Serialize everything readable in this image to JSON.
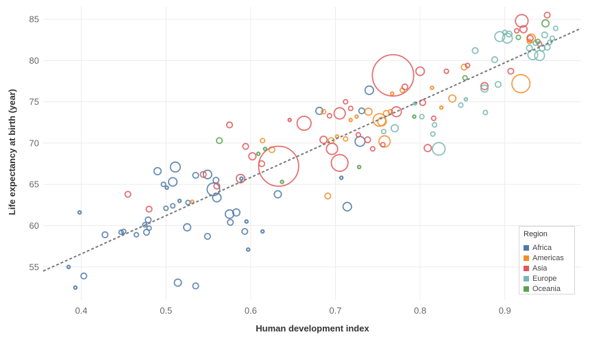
{
  "chart_data": {
    "type": "scatter",
    "title": "",
    "xlabel": "Human development index",
    "ylabel": "Life expectancy at birth (year)",
    "xlim": [
      0.355,
      0.99
    ],
    "ylim": [
      51,
      86.5
    ],
    "x_ticks": [
      "0.4",
      "0.5",
      "0.6",
      "0.7",
      "0.8",
      "0.9"
    ],
    "x_tick_values": [
      0.4,
      0.5,
      0.6,
      0.7,
      0.8,
      0.9
    ],
    "y_ticks": [
      "55",
      "60",
      "65",
      "70",
      "75",
      "80",
      "85"
    ],
    "y_tick_values": [
      55,
      60,
      65,
      70,
      75,
      80,
      85
    ],
    "grid": true,
    "legend_position": "bottom-right",
    "legend": {
      "title": "Region",
      "items": [
        {
          "name": "Africa",
          "color": "#4e79a7"
        },
        {
          "name": "Americas",
          "color": "#f28e2b"
        },
        {
          "name": "Asia",
          "color": "#e15759"
        },
        {
          "name": "Europe",
          "color": "#76b7b2"
        },
        {
          "name": "Oceania",
          "color": "#59a14f"
        }
      ]
    },
    "trendline": {
      "x": [
        0.355,
        0.99
      ],
      "y": [
        54.5,
        83.9
      ]
    },
    "series": [
      {
        "region": "Africa",
        "points": [
          [
            0.385,
            55.0,
            1
          ],
          [
            0.393,
            52.5,
            1
          ],
          [
            0.398,
            61.6,
            1
          ],
          [
            0.403,
            53.9,
            3
          ],
          [
            0.428,
            58.9,
            3
          ],
          [
            0.447,
            59.2,
            2
          ],
          [
            0.45,
            59.3,
            2
          ],
          [
            0.465,
            58.9,
            2
          ],
          [
            0.475,
            60.1,
            2
          ],
          [
            0.477,
            59.2,
            3
          ],
          [
            0.479,
            60.7,
            3
          ],
          [
            0.48,
            59.7,
            2
          ],
          [
            0.49,
            66.6,
            4
          ],
          [
            0.497,
            65.0,
            2
          ],
          [
            0.5,
            62.1,
            2
          ],
          [
            0.501,
            64.6,
            1
          ],
          [
            0.508,
            62.4,
            2
          ],
          [
            0.508,
            65.3,
            5
          ],
          [
            0.511,
            67.1,
            6
          ],
          [
            0.514,
            53.1,
            4
          ],
          [
            0.516,
            63.0,
            1
          ],
          [
            0.525,
            59.8,
            4
          ],
          [
            0.526,
            62.8,
            2
          ],
          [
            0.535,
            52.7,
            3
          ],
          [
            0.535,
            66.1,
            3
          ],
          [
            0.549,
            66.2,
            5
          ],
          [
            0.549,
            58.7,
            3
          ],
          [
            0.556,
            64.4,
            8
          ],
          [
            0.559,
            65.5,
            3
          ],
          [
            0.56,
            63.4,
            5
          ],
          [
            0.575,
            61.4,
            5
          ],
          [
            0.576,
            60.4,
            3
          ],
          [
            0.583,
            61.6,
            4
          ],
          [
            0.589,
            65.7,
            1
          ],
          [
            0.593,
            59.3,
            3
          ],
          [
            0.595,
            60.5,
            1
          ],
          [
            0.597,
            57.1,
            1
          ],
          [
            0.614,
            59.3,
            1
          ],
          [
            0.632,
            63.8,
            4
          ],
          [
            0.681,
            73.9,
            4
          ],
          [
            0.707,
            65.8,
            1
          ],
          [
            0.714,
            62.3,
            5
          ],
          [
            0.729,
            70.2,
            6
          ],
          [
            0.731,
            73.9,
            3
          ],
          [
            0.74,
            76.4,
            5
          ]
        ]
      },
      {
        "region": "Americas",
        "points": [
          [
            0.531,
            62.9,
            1
          ],
          [
            0.614,
            70.3,
            2
          ],
          [
            0.625,
            69.2,
            3
          ],
          [
            0.686,
            73.8,
            2
          ],
          [
            0.691,
            63.6,
            3
          ],
          [
            0.695,
            70.3,
            3
          ],
          [
            0.702,
            70.8,
            1
          ],
          [
            0.712,
            70.5,
            2
          ],
          [
            0.718,
            72.8,
            1
          ],
          [
            0.725,
            73.2,
            1
          ],
          [
            0.739,
            73.8,
            4
          ],
          [
            0.752,
            72.8,
            8
          ],
          [
            0.755,
            72.6,
            5
          ],
          [
            0.758,
            70.2,
            7
          ],
          [
            0.76,
            73.6,
            3
          ],
          [
            0.765,
            73.8,
            2
          ],
          [
            0.767,
            76.0,
            1
          ],
          [
            0.779,
            76.4,
            2
          ],
          [
            0.814,
            76.7,
            1
          ],
          [
            0.825,
            74.3,
            1
          ],
          [
            0.838,
            75.4,
            4
          ],
          [
            0.852,
            79.2,
            3
          ],
          [
            0.919,
            77.2,
            12
          ],
          [
            0.929,
            82.3,
            2
          ],
          [
            0.931,
            82.7,
            5
          ]
        ]
      },
      {
        "region": "Asia",
        "points": [
          [
            0.455,
            63.8,
            3
          ],
          [
            0.48,
            62.0,
            3
          ],
          [
            0.544,
            66.2,
            3
          ],
          [
            0.56,
            64.8,
            3
          ],
          [
            0.575,
            72.2,
            3
          ],
          [
            0.588,
            65.7,
            5
          ],
          [
            0.594,
            69.6,
            3
          ],
          [
            0.602,
            68.4,
            4
          ],
          [
            0.613,
            67.5,
            3
          ],
          [
            0.633,
            67.2,
            28
          ],
          [
            0.646,
            72.8,
            1
          ],
          [
            0.663,
            72.4,
            9
          ],
          [
            0.686,
            70.4,
            4
          ],
          [
            0.693,
            73.3,
            2
          ],
          [
            0.696,
            69.3,
            7
          ],
          [
            0.705,
            73.6,
            7
          ],
          [
            0.705,
            67.6,
            11
          ],
          [
            0.712,
            75.0,
            2
          ],
          [
            0.718,
            74.2,
            2
          ],
          [
            0.727,
            71.0,
            2
          ],
          [
            0.738,
            70.4,
            3
          ],
          [
            0.744,
            69.3,
            2
          ],
          [
            0.756,
            69.8,
            2
          ],
          [
            0.768,
            78.2,
            29
          ],
          [
            0.772,
            73.8,
            6
          ],
          [
            0.782,
            76.8,
            3
          ],
          [
            0.8,
            78.7,
            5
          ],
          [
            0.803,
            74.9,
            3
          ],
          [
            0.809,
            69.4,
            4
          ],
          [
            0.816,
            73.0,
            2
          ],
          [
            0.831,
            78.7,
            2
          ],
          [
            0.856,
            79.4,
            2
          ],
          [
            0.876,
            76.9,
            4
          ],
          [
            0.907,
            78.7,
            3
          ],
          [
            0.914,
            83.6,
            2
          ],
          [
            0.92,
            84.8,
            8
          ],
          [
            0.922,
            83.8,
            4
          ],
          [
            0.93,
            82.7,
            3
          ],
          [
            0.941,
            82.0,
            2
          ],
          [
            0.95,
            85.5,
            3
          ]
        ]
      },
      {
        "region": "Europe",
        "points": [
          [
            0.757,
            71.4,
            2
          ],
          [
            0.77,
            71.8,
            4
          ],
          [
            0.794,
            74.8,
            1
          ],
          [
            0.802,
            73.2,
            2
          ],
          [
            0.815,
            71.1,
            2
          ],
          [
            0.817,
            72.2,
            2
          ],
          [
            0.822,
            69.3,
            8
          ],
          [
            0.848,
            74.6,
            2
          ],
          [
            0.854,
            75.3,
            1
          ],
          [
            0.865,
            81.2,
            3
          ],
          [
            0.876,
            76.6,
            4
          ],
          [
            0.877,
            73.7,
            2
          ],
          [
            0.888,
            80.1,
            3
          ],
          [
            0.892,
            77.1,
            3
          ],
          [
            0.894,
            82.9,
            6
          ],
          [
            0.9,
            83.4,
            2
          ],
          [
            0.903,
            82.7,
            6
          ],
          [
            0.905,
            83.2,
            3
          ],
          [
            0.929,
            81.5,
            3
          ],
          [
            0.933,
            80.7,
            6
          ],
          [
            0.936,
            82.1,
            2
          ],
          [
            0.941,
            80.6,
            6
          ],
          [
            0.944,
            81.5,
            3
          ],
          [
            0.947,
            83.1,
            3
          ],
          [
            0.95,
            81.6,
            3
          ],
          [
            0.953,
            82.2,
            2
          ],
          [
            0.956,
            82.7,
            2
          ],
          [
            0.96,
            83.9,
            2
          ]
        ]
      },
      {
        "region": "Oceania",
        "points": [
          [
            0.563,
            70.3,
            3
          ],
          [
            0.609,
            68.7,
            1
          ],
          [
            0.617,
            69.3,
            1
          ],
          [
            0.637,
            65.3,
            1
          ],
          [
            0.728,
            67.1,
            1
          ],
          [
            0.793,
            73.2,
            1
          ],
          [
            0.853,
            77.9,
            2
          ],
          [
            0.916,
            82.8,
            2
          ],
          [
            0.939,
            82.3,
            2
          ],
          [
            0.948,
            84.5,
            4
          ]
        ]
      }
    ]
  }
}
